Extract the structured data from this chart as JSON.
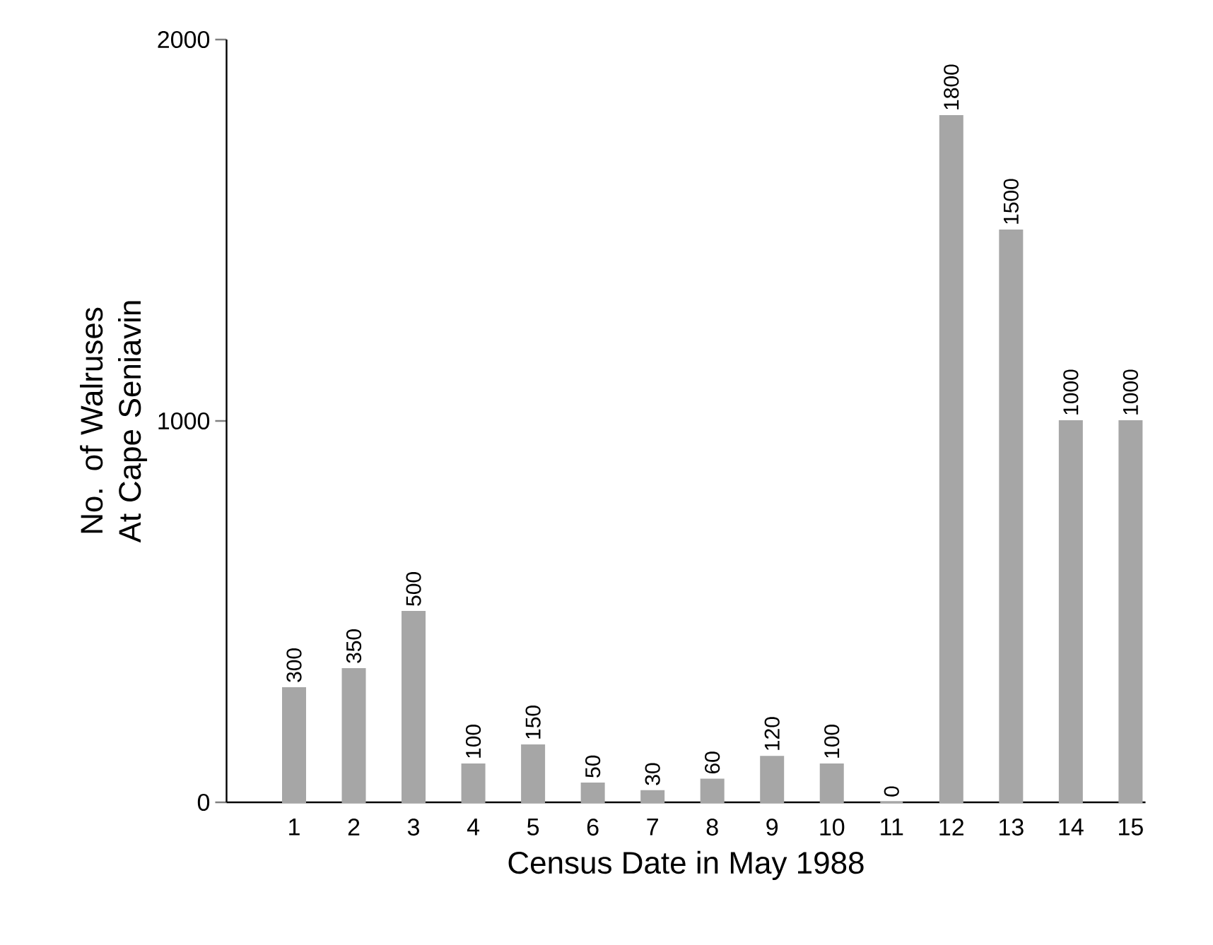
{
  "chart_data": {
    "type": "bar",
    "xlabel": "Census Date in May 1988",
    "ylabel": "No. of Walruses At Cape Seniavin",
    "categories": [
      "1",
      "2",
      "3",
      "4",
      "5",
      "6",
      "7",
      "8",
      "9",
      "10",
      "11",
      "12",
      "13",
      "14",
      "15"
    ],
    "values": [
      300,
      350,
      500,
      100,
      150,
      50,
      30,
      60,
      120,
      100,
      0,
      1800,
      1500,
      1000,
      1000
    ],
    "color": "#a6a6a6",
    "ylim": [
      0,
      2000
    ],
    "yticks": [
      0,
      1000,
      2000
    ],
    "data_labels": true
  }
}
